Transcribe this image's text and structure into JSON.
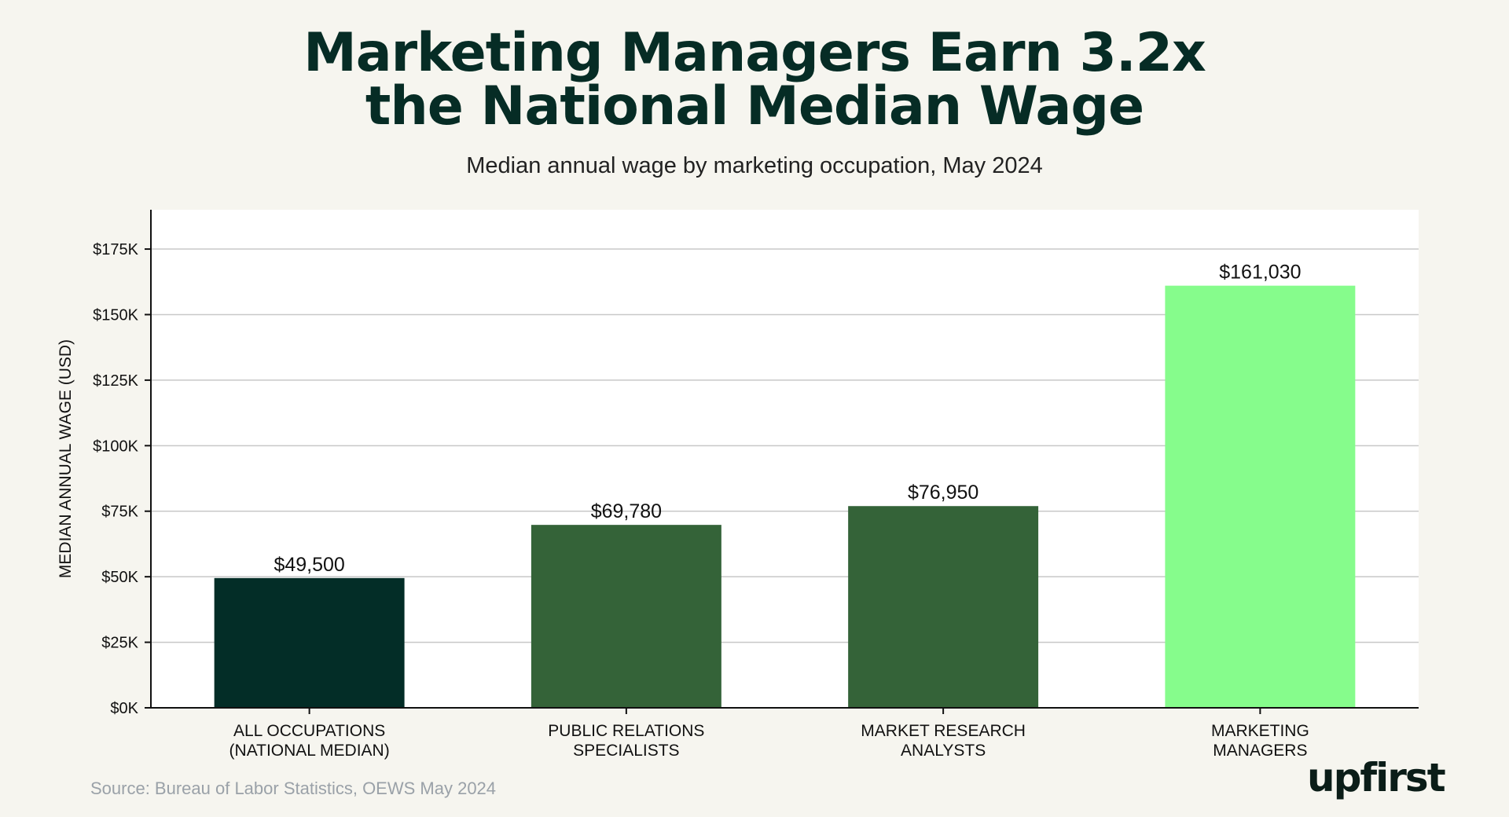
{
  "header": {
    "title_line1": "Marketing Managers Earn 3.2x",
    "title_line2": "the National Median Wage",
    "subtitle": "Median annual wage by marketing occupation, May 2024"
  },
  "footer": {
    "source": "Source: Bureau of Labor Statistics, OEWS May 2024",
    "logo_text": "upfirst"
  },
  "chart_data": {
    "type": "bar",
    "title": "Marketing Managers Earn 3.2x the National Median Wage",
    "subtitle": "Median annual wage by marketing occupation, May 2024",
    "xlabel": "",
    "ylabel": "MEDIAN ANNUAL WAGE (USD)",
    "ylim": [
      0,
      190000
    ],
    "yticks": [
      0,
      25000,
      50000,
      75000,
      100000,
      125000,
      150000,
      175000
    ],
    "ytick_labels": [
      "$0K",
      "$25K",
      "$50K",
      "$75K",
      "$100K",
      "$125K",
      "$150K",
      "$175K"
    ],
    "grid": "horizontal",
    "categories": [
      [
        "ALL OCCUPATIONS",
        "(NATIONAL MEDIAN)"
      ],
      [
        "PUBLIC RELATIONS",
        "SPECIALISTS"
      ],
      [
        "MARKET RESEARCH",
        "ANALYSTS"
      ],
      [
        "MARKETING",
        "MANAGERS"
      ]
    ],
    "values": [
      49500,
      69780,
      76950,
      161030
    ],
    "value_labels": [
      "$49,500",
      "$69,780",
      "$76,950",
      "$161,030"
    ],
    "colors": [
      "#032d27",
      "#346338",
      "#346338",
      "#86fc8c"
    ],
    "plot_background": "#ffffff",
    "gridline_color": "#c8c8c8",
    "axis_color": "#111111"
  }
}
